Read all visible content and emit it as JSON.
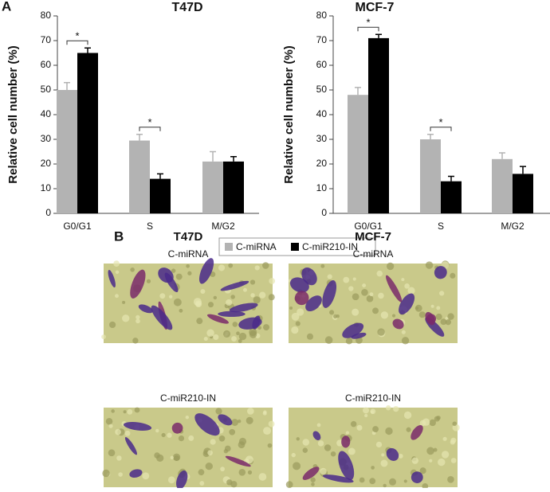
{
  "panel_labels": [
    "A",
    "B"
  ],
  "chart_data": [
    {
      "type": "bar",
      "title": "T47D",
      "ylabel": "Relative cell number (%)",
      "categories": [
        "G0/G1",
        "S",
        "M/G2"
      ],
      "series": [
        {
          "name": "C-miRNA",
          "color": "#b3b3b3",
          "values": [
            50,
            29.5,
            21
          ],
          "errors": [
            3,
            2.5,
            4
          ]
        },
        {
          "name": "C-miR210-IN",
          "color": "#000000",
          "values": [
            65,
            14,
            21
          ],
          "errors": [
            2,
            2,
            2
          ]
        }
      ],
      "significance_labels": [
        "*",
        "*",
        null
      ],
      "ylim": [
        0,
        80
      ],
      "yticks": [
        0,
        10,
        20,
        30,
        40,
        50,
        60,
        70,
        80
      ]
    },
    {
      "type": "bar",
      "title": "MCF-7",
      "ylabel": "Relative cell number (%)",
      "categories": [
        "G0/G1",
        "S",
        "M/G2"
      ],
      "series": [
        {
          "color": "#b3b3b3",
          "values": [
            48,
            30,
            22
          ],
          "errors": [
            3,
            2,
            2.5
          ]
        },
        {
          "color": "#000000",
          "values": [
            71,
            13,
            16
          ],
          "errors": [
            1.5,
            2,
            3
          ]
        }
      ],
      "significance_labels": [
        "*",
        "*",
        null
      ],
      "ylim": [
        0,
        80
      ],
      "yticks": [
        0,
        10,
        20,
        30,
        40,
        50,
        60,
        70,
        80
      ]
    }
  ],
  "images": {
    "columns": [
      "T47D",
      "MCF-7"
    ],
    "rows": [
      "C-miRNA",
      "C-miR210-IN"
    ]
  }
}
